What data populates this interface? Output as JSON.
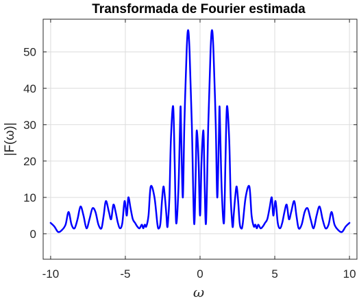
{
  "chart_data": {
    "type": "line",
    "title": "Transformada de Fourier estimada",
    "xlabel": "ω",
    "ylabel": "|F(ω)|",
    "xlim": [
      -10.5,
      10.5
    ],
    "ylim": [
      -7,
      59
    ],
    "xticks": [
      -10,
      -5,
      0,
      5,
      10
    ],
    "xtick_labels": [
      "-10",
      "-5",
      "0",
      "5",
      "10"
    ],
    "yticks": [
      0,
      10,
      20,
      30,
      40,
      50
    ],
    "ytick_labels": [
      "0",
      "10",
      "20",
      "30",
      "40",
      "50"
    ],
    "grid": true,
    "series": [
      {
        "color": "#0000ff",
        "x": [
          0,
          0.1,
          0.2,
          0.25,
          0.3,
          0.4,
          0.55,
          0.7,
          0.8,
          0.9,
          1.05,
          1.15,
          1.25,
          1.3,
          1.35,
          1.45,
          1.6,
          1.7,
          1.8,
          1.95,
          2.05,
          2.15,
          2.2,
          2.25,
          2.35,
          2.45,
          2.55,
          2.65,
          2.75,
          2.85,
          3.05,
          3.3,
          3.45,
          3.6,
          3.7,
          3.8,
          3.9,
          4.05,
          4.2,
          4.35,
          4.5,
          4.65,
          4.8,
          4.9,
          5.05,
          5.2,
          5.35,
          5.5,
          5.65,
          5.8,
          5.95,
          6.1,
          6.3,
          6.45,
          6.6,
          6.8,
          7.0,
          7.2,
          7.4,
          7.6,
          7.8,
          8.0,
          8.2,
          8.4,
          8.6,
          8.8,
          9.0,
          9.25,
          9.5,
          9.75,
          10.0
        ],
        "y": [
          5,
          20,
          28,
          26,
          15,
          3,
          30,
          50,
          56,
          50,
          30,
          10,
          25,
          35,
          28,
          12,
          3,
          20,
          35,
          26,
          10,
          3,
          2,
          5,
          10,
          13,
          9,
          3,
          1.5,
          2.5,
          10,
          13,
          5,
          2,
          2.5,
          1.5,
          2.5,
          1.5,
          2,
          3,
          4,
          7,
          10,
          5,
          9,
          3,
          1.5,
          3,
          6,
          8,
          4,
          6,
          9,
          5,
          1.5,
          2.5,
          6,
          7,
          4,
          1.5,
          5,
          7.5,
          4,
          1.5,
          2.5,
          6,
          2.5,
          1,
          0.5,
          2,
          3
        ]
      }
    ]
  }
}
